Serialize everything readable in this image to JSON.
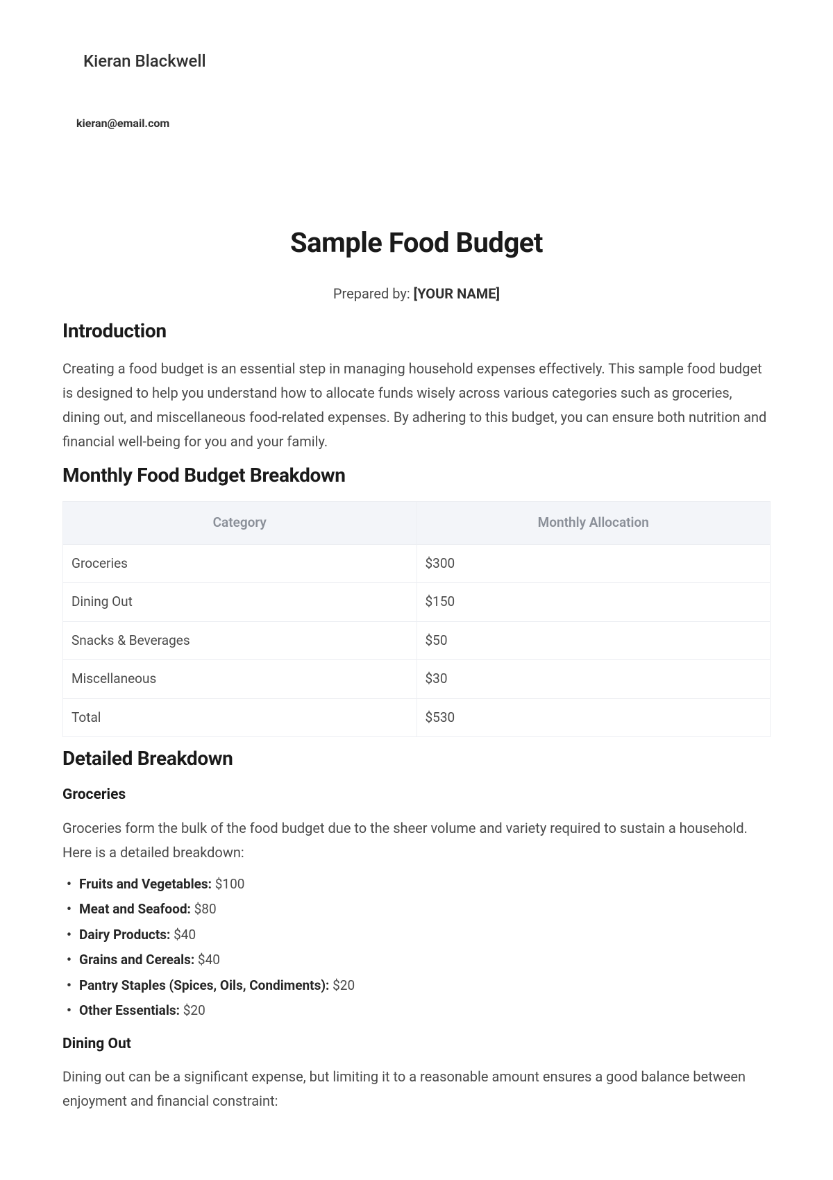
{
  "header": {
    "author_name": "Kieran Blackwell",
    "author_email": "kieran@email.com"
  },
  "title": "Sample Food Budget",
  "prepared_by_prefix": "Prepared by: ",
  "prepared_by_placeholder": "[YOUR NAME]",
  "sections": {
    "introduction": {
      "heading": "Introduction",
      "body": "Creating a food budget is an essential step in managing household expenses effectively. This sample food budget is designed to help you understand how to allocate funds wisely across various categories such as groceries, dining out, and miscellaneous food-related expenses. By adhering to this budget, you can ensure both nutrition and financial well-being for you and your family."
    },
    "breakdown": {
      "heading": "Monthly Food Budget Breakdown",
      "table": {
        "columns": [
          "Category",
          "Monthly Allocation"
        ],
        "rows": [
          [
            "Groceries",
            "$300"
          ],
          [
            "Dining Out",
            "$150"
          ],
          [
            "Snacks & Beverages",
            "$50"
          ],
          [
            "Miscellaneous",
            "$30"
          ],
          [
            "Total",
            "$530"
          ]
        ],
        "header_bg": "#f3f5f9",
        "header_text_color": "#8a8f98",
        "border_color": "#eceef2",
        "cell_text_color": "#4a4a4a",
        "font_size_pt": 14
      }
    },
    "detailed": {
      "heading": "Detailed Breakdown",
      "groceries": {
        "heading": "Groceries",
        "body": "Groceries form the bulk of the food budget due to the sheer volume and variety required to sustain a household. Here is a detailed breakdown:",
        "items": [
          {
            "label": "Fruits and Vegetables:",
            "value": " $100"
          },
          {
            "label": "Meat and Seafood:",
            "value": " $80"
          },
          {
            "label": "Dairy Products:",
            "value": " $40"
          },
          {
            "label": "Grains and Cereals:",
            "value": " $40"
          },
          {
            "label": "Pantry Staples (Spices, Oils, Condiments):",
            "value": " $20"
          },
          {
            "label": "Other Essentials:",
            "value": " $20"
          }
        ]
      },
      "dining": {
        "heading": "Dining Out",
        "body": "Dining out can be a significant expense, but limiting it to a reasonable amount ensures a good balance between enjoyment and financial constraint:"
      }
    }
  },
  "colors": {
    "background": "#ffffff",
    "heading": "#1a1a1a",
    "body_text": "#4a4a4a"
  }
}
